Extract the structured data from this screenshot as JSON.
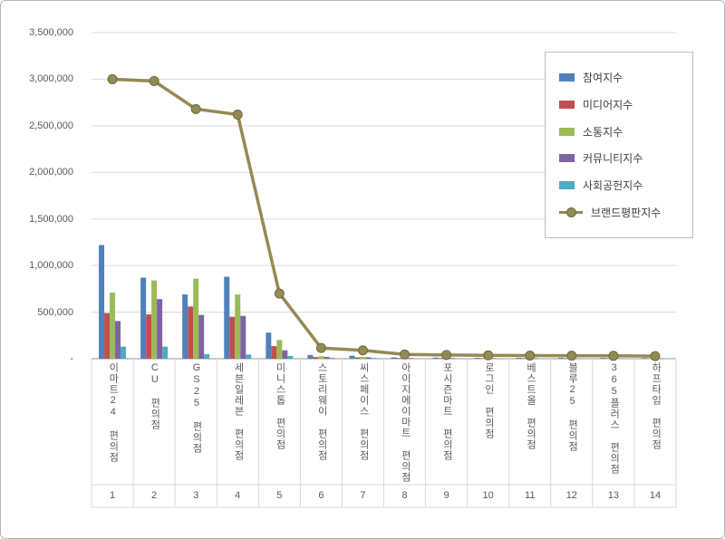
{
  "chart_data": {
    "type": "bar",
    "combo": "grouped-bar-with-line-overlay",
    "title": "",
    "categories": [
      "이마트24 편의점",
      "CU 편의점",
      "GS25 편의점",
      "세븐일레븐 편의점",
      "미니스톱 편의점",
      "스토리웨이 편의점",
      "씨스페이스 편의점",
      "아이지에이마트 편의점",
      "포시즌마트 편의점",
      "로그인 편의점",
      "베스트올 편의점",
      "블루25 편의점",
      "365플러스 편의점",
      "하프타임 편의점"
    ],
    "ranks": [
      "1",
      "2",
      "3",
      "4",
      "5",
      "6",
      "7",
      "8",
      "9",
      "10",
      "11",
      "12",
      "13",
      "14"
    ],
    "series": [
      {
        "name": "참여지수",
        "type": "bar",
        "color": "#4F81BD",
        "values": [
          1220000,
          870000,
          690000,
          880000,
          280000,
          40000,
          32000,
          15000,
          12000,
          10000,
          10000,
          10000,
          9000,
          8000
        ]
      },
      {
        "name": "미디어지수",
        "type": "bar",
        "color": "#C0504D",
        "values": [
          490000,
          475000,
          560000,
          450000,
          135000,
          18000,
          14000,
          8000,
          7000,
          6000,
          6000,
          6000,
          6000,
          5000
        ]
      },
      {
        "name": "소통지수",
        "type": "bar",
        "color": "#9BBB59",
        "values": [
          710000,
          840000,
          860000,
          690000,
          200000,
          26000,
          20000,
          10000,
          8000,
          7000,
          7000,
          7000,
          6000,
          5000
        ]
      },
      {
        "name": "커뮤니티지수",
        "type": "bar",
        "color": "#8064A2",
        "values": [
          405000,
          640000,
          470000,
          460000,
          90000,
          20000,
          16000,
          8000,
          7000,
          6000,
          6000,
          5000,
          5000,
          4000
        ]
      },
      {
        "name": "사회공헌지수",
        "type": "bar",
        "color": "#4BACC6",
        "values": [
          130000,
          130000,
          50000,
          45000,
          30000,
          10000,
          8000,
          5000,
          4000,
          4000,
          4000,
          4000,
          4000,
          3000
        ]
      },
      {
        "name": "브랜드평판지수",
        "type": "line",
        "color": "#948A54",
        "marker_stroke": "#6F6A3E",
        "values": [
          3000000,
          2980000,
          2680000,
          2620000,
          700000,
          115000,
          90000,
          46000,
          40000,
          36000,
          34000,
          33000,
          31000,
          28000
        ]
      }
    ],
    "ylim": [
      0,
      3500000
    ],
    "ytick_step": 500000,
    "ytick_labels": [
      "3,500,000",
      "3,000,000",
      "2,500,000",
      "2,000,000",
      "1,500,000",
      "1,000,000",
      "500,000",
      "-"
    ],
    "legend_position": "top-right-inside-plot",
    "grid": true,
    "colors": {
      "grid": "#d9d9d9",
      "axis": "#9a9a9a",
      "separator": "#d9d9d9",
      "tick_text": "#595959",
      "legend_text": "#3f3f3f",
      "legend_border": "#bfbfbf",
      "frame_border": "#b4b4b4"
    }
  }
}
